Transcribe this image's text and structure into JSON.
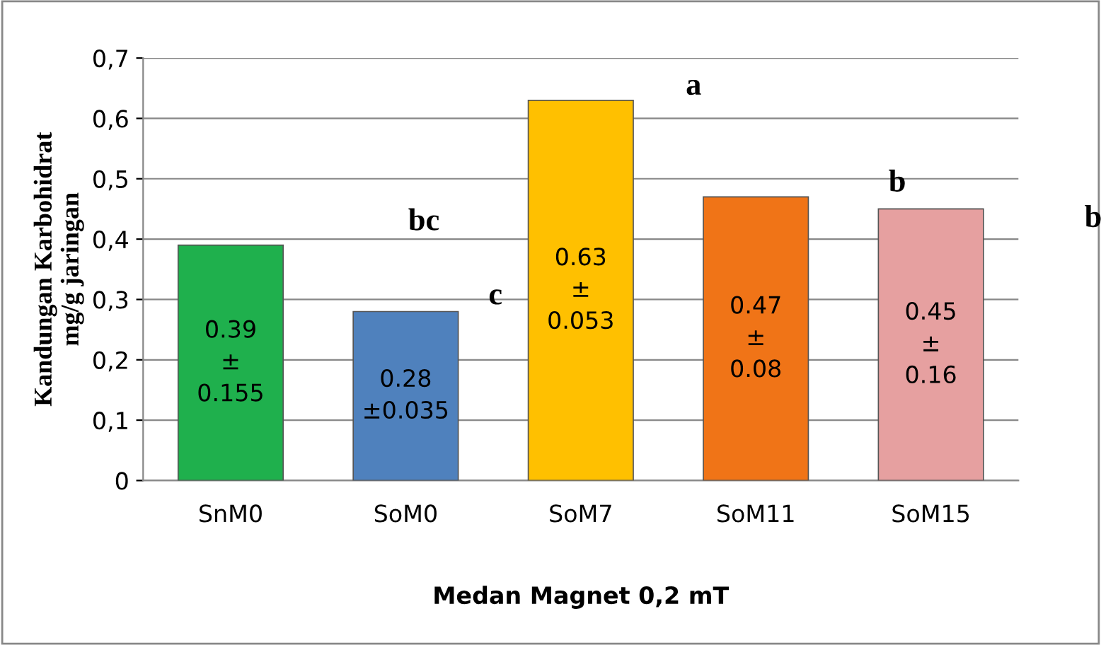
{
  "chart_data": {
    "type": "bar",
    "xlabel": "Medan Magnet 0,2 mT",
    "ylabel": "Kandungan Karbohidrat\nmg/g jaringan",
    "categories": [
      "SnM0",
      "SoM0",
      "SoM7",
      "SoM11",
      "SoM15"
    ],
    "values": [
      0.39,
      0.28,
      0.63,
      0.47,
      0.45
    ],
    "colors": [
      "#1fb04d",
      "#4f81bd",
      "#ffc000",
      "#f07417",
      "#e6a0a0"
    ],
    "value_labels": [
      "0.39\n±\n0.155",
      "0.28\n±0.035",
      "0.63\n±\n0.053",
      "0.47\n±\n0.08",
      "0.45\n±\n0.16"
    ],
    "ylim": [
      0,
      0.7
    ],
    "yticks": [
      0,
      {
        "value": 0.1,
        "label": "0,1"
      },
      {
        "value": 0.2,
        "label": "0,2"
      },
      {
        "value": 0.3,
        "label": "0,3"
      },
      {
        "value": 0.4,
        "label": "0,4"
      },
      {
        "value": 0.5,
        "label": "0,5"
      },
      {
        "value": 0.6,
        "label": "0,6"
      },
      {
        "value": 0.7,
        "label": "0,7"
      }
    ],
    "grid": "y",
    "legend": false,
    "annotations": [
      "bc",
      "c",
      "a",
      "b",
      "b"
    ]
  }
}
